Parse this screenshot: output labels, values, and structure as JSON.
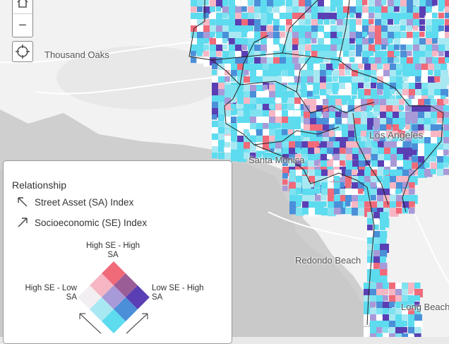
{
  "map": {
    "places": [
      {
        "name": "Thousand Oaks"
      },
      {
        "name": "Santa Monica"
      },
      {
        "name": "Los Angeles"
      },
      {
        "name": "Redondo Beach"
      },
      {
        "name": "Long Beach"
      }
    ],
    "colors": {
      "land": "#f2f2f2",
      "ocean": "#c9c9c9",
      "low_low": "#5ddbef",
      "high_high": "#5a3fb4",
      "high_se": "#f06a7a",
      "high_sa": "#4a8fd8"
    }
  },
  "controls": {
    "zoom_in_icon": "plus-icon",
    "zoom_out_label": "−",
    "locate_icon": "crosshair-icon"
  },
  "legend": {
    "title": "Relationship",
    "row1": "Street Asset (SA) Index",
    "row2": "Socioeconomic (SE) Index",
    "top_label_line1": "High SE - High",
    "top_label_line2": "SA",
    "left_label_line1": "High SE - Low",
    "left_label_line2": "SA",
    "right_label_line1": "Low SE - High",
    "right_label_line2": "SA",
    "grid_colors": [
      [
        "#f06a7a",
        "#9b5d96",
        "#5a3fb4"
      ],
      [
        "#f7b6c3",
        "#a89ad8",
        "#4a8fd8"
      ],
      [
        "#f2eef2",
        "#a8e8f2",
        "#5ddbef"
      ]
    ]
  }
}
